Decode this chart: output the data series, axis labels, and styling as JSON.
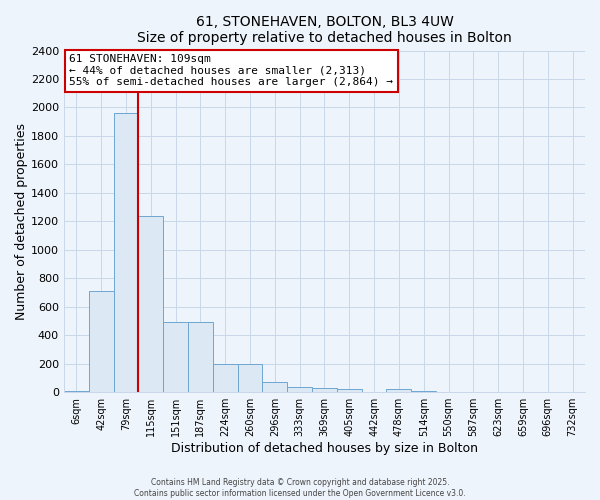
{
  "title": "61, STONEHAVEN, BOLTON, BL3 4UW",
  "subtitle": "Size of property relative to detached houses in Bolton",
  "xlabel": "Distribution of detached houses by size in Bolton",
  "ylabel": "Number of detached properties",
  "bar_color": "#dce9f5",
  "bar_edge_color": "#6ea6d0",
  "tick_labels": [
    "6sqm",
    "42sqm",
    "79sqm",
    "115sqm",
    "151sqm",
    "187sqm",
    "224sqm",
    "260sqm",
    "296sqm",
    "333sqm",
    "369sqm",
    "405sqm",
    "442sqm",
    "478sqm",
    "514sqm",
    "550sqm",
    "587sqm",
    "623sqm",
    "659sqm",
    "696sqm",
    "732sqm"
  ],
  "bar_heights": [
    5,
    710,
    1960,
    1240,
    490,
    490,
    200,
    200,
    75,
    35,
    30,
    20,
    0,
    20,
    10,
    0,
    0,
    0,
    0,
    0,
    0
  ],
  "ylim": [
    0,
    2400
  ],
  "yticks": [
    0,
    200,
    400,
    600,
    800,
    1000,
    1200,
    1400,
    1600,
    1800,
    2000,
    2200,
    2400
  ],
  "vline_color": "#cc0000",
  "annotation_title": "61 STONEHAVEN: 109sqm",
  "annotation_line1": "← 44% of detached houses are smaller (2,313)",
  "annotation_line2": "55% of semi-detached houses are larger (2,864) →",
  "footer1": "Contains HM Land Registry data © Crown copyright and database right 2025.",
  "footer2": "Contains public sector information licensed under the Open Government Licence v3.0.",
  "background_color": "#eef4fb",
  "plot_bg_color": "#eef4fb",
  "grid_color": "#c8d8e8"
}
